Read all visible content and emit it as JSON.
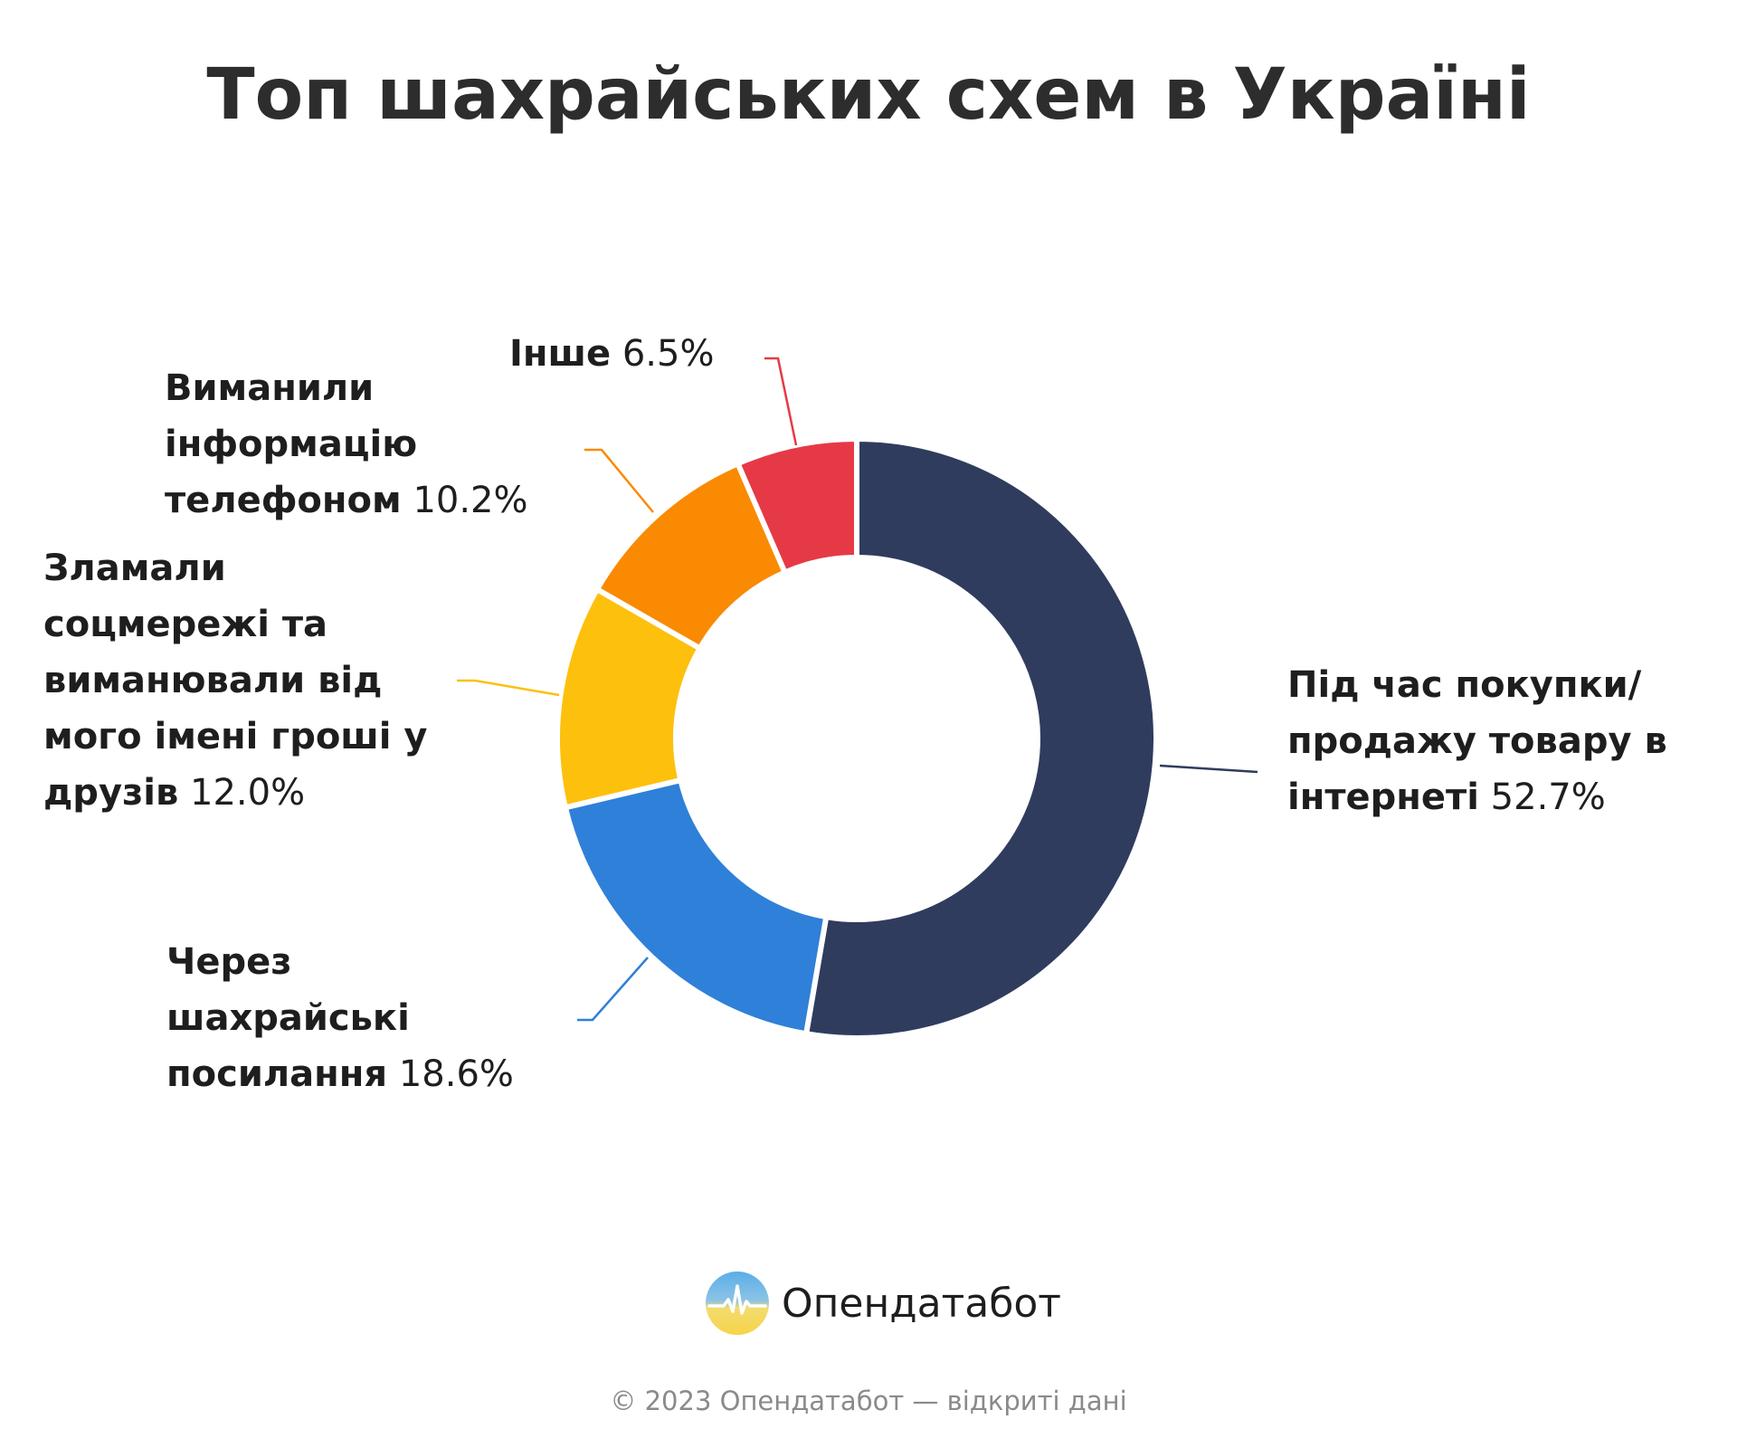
{
  "title": "Топ шахрайських схем в Україні",
  "chart_data": {
    "type": "pie",
    "title": "Топ шахрайських схем в Україні",
    "slices": [
      {
        "label": "Під час покупки/продажу товару в інтернеті",
        "value": 52.7,
        "value_label": "52.7%",
        "color": "#2f3c5e"
      },
      {
        "label": "Через шахрайські посилання",
        "value": 18.6,
        "value_label": "18.6%",
        "color": "#2f80d8"
      },
      {
        "label": "Зламали соцмережі та виманювали від мого імені гроші у друзів",
        "value": 12.0,
        "value_label": "12.0%",
        "color": "#fdc00d"
      },
      {
        "label": "Виманили інформацію телефоном",
        "value": 10.2,
        "value_label": "10.2%",
        "color": "#f98a02"
      },
      {
        "label": "Інше",
        "value": 6.5,
        "value_label": "6.5%",
        "color": "#e63946"
      }
    ]
  },
  "brand": {
    "name": "Опендатабот",
    "colors": {
      "top": "#5aaee8",
      "bottom": "#f7d449"
    }
  },
  "footer": {
    "copyright": "© 2023 Опендатабот — відкриті дані"
  }
}
